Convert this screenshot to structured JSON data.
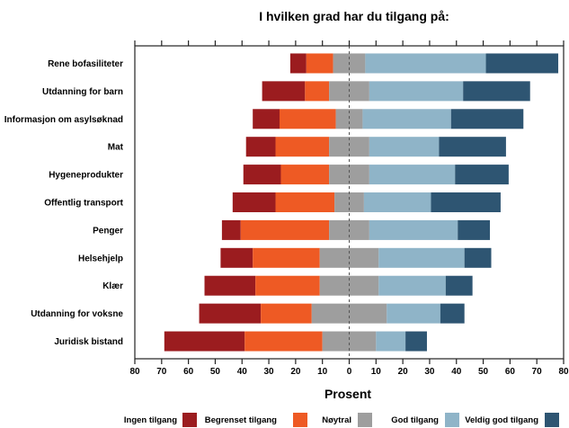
{
  "chart_data": {
    "type": "bar",
    "orientation": "horizontal-diverging",
    "title": "I hvilken grad har du tilgang på:",
    "xlabel": "Prosent",
    "ylabel": "",
    "xlim": [
      -80,
      80
    ],
    "x_tick_labels": [
      "80",
      "70",
      "60",
      "50",
      "40",
      "30",
      "20",
      "10",
      "0",
      "10",
      "20",
      "30",
      "40",
      "50",
      "60",
      "70",
      "80"
    ],
    "x_tick_values": [
      -80,
      -70,
      -60,
      -50,
      -40,
      -30,
      -20,
      -10,
      0,
      10,
      20,
      30,
      40,
      50,
      60,
      70,
      80
    ],
    "categories": [
      "Rene bofasiliteter",
      "Utdanning for barn",
      "Informasjon om asylsøknad",
      "Mat",
      "Hygeneprodukter",
      "Offentlig transport",
      "Penger",
      "Helsehjelp",
      "Klær",
      "Utdanning for voksne",
      "Juridisk bistand"
    ],
    "series": [
      {
        "name": "Ingen tilgang",
        "color": "#9b1c1f",
        "values": [
          6,
          16,
          10,
          11,
          14,
          16,
          7,
          12,
          19,
          23,
          30
        ]
      },
      {
        "name": "Begrenset tilgang",
        "color": "#ee5a24",
        "values": [
          10,
          9,
          21,
          20,
          18,
          22,
          33,
          25,
          24,
          19,
          29
        ]
      },
      {
        "name": "Nøytral",
        "color": "#9e9e9e",
        "values": [
          12,
          15,
          10,
          15,
          15,
          11,
          15,
          22,
          22,
          28,
          20
        ]
      },
      {
        "name": "God tilgang",
        "color": "#8fb4c8",
        "values": [
          45,
          35,
          33,
          26,
          32,
          25,
          33,
          32,
          25,
          20,
          11
        ]
      },
      {
        "name": "Veldig god tilgang",
        "color": "#2e5572",
        "values": [
          27,
          25,
          27,
          25,
          20,
          26,
          12,
          10,
          10,
          9,
          8
        ]
      }
    ],
    "neutral_split": "centered",
    "legend_position": "bottom",
    "grid": false
  }
}
